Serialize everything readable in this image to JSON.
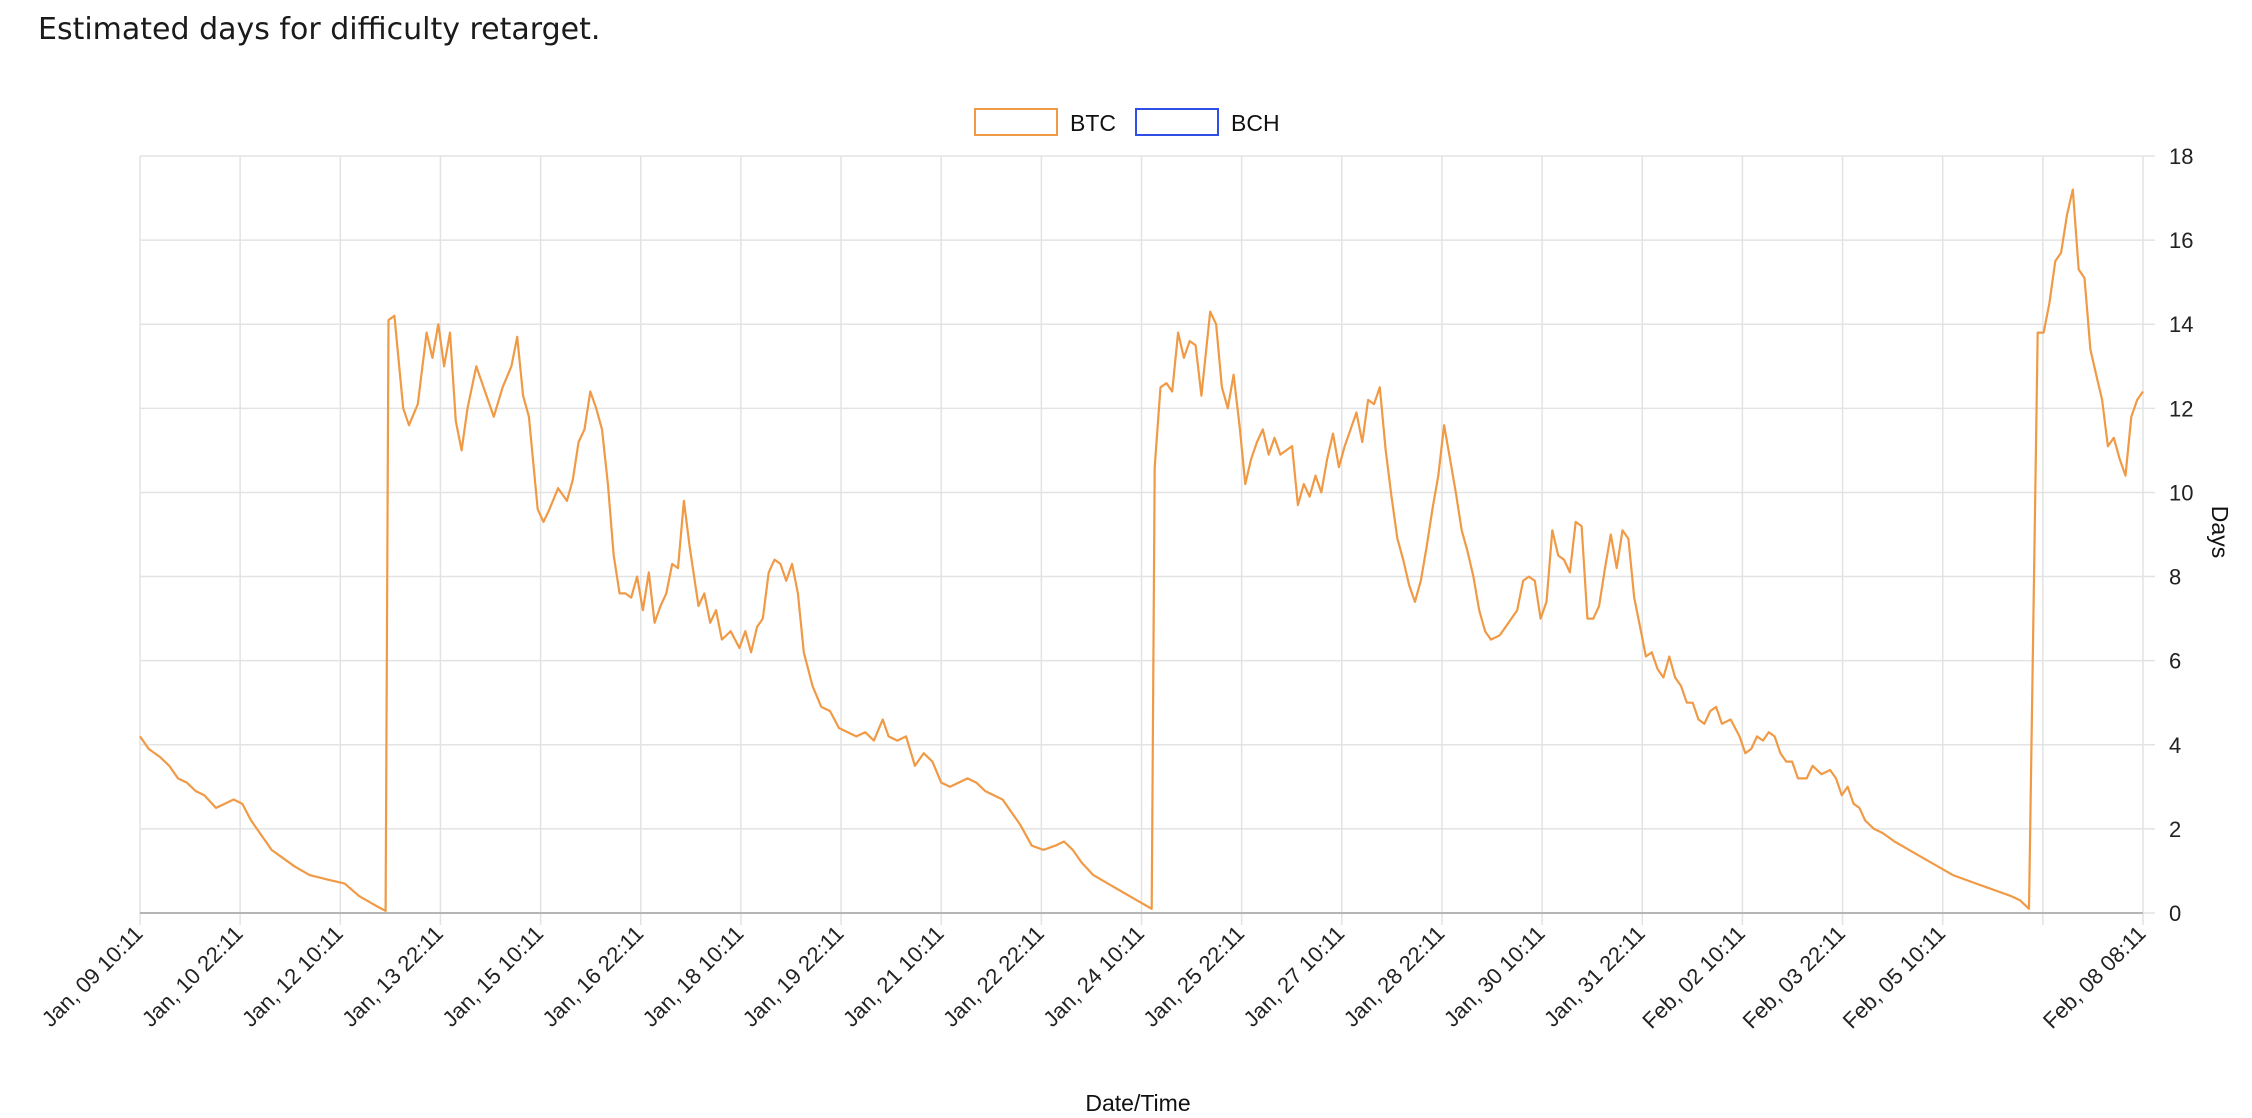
{
  "title": "Estimated days for difficulty retarget.",
  "colors": {
    "btc": "#f09a46",
    "bch": "#2e4fe6",
    "grid": "#e3e3e3",
    "axis": "#b5b5b5"
  },
  "chart_data": {
    "type": "line",
    "xlabel": "Date/Time",
    "ylabel": "Days",
    "ylim": [
      0,
      18
    ],
    "yticks": [
      0,
      2,
      4,
      6,
      8,
      10,
      12,
      14,
      16,
      18
    ],
    "xticks": [
      "Jan, 09 10:11",
      "Jan, 10 22:11",
      "Jan, 12 10:11",
      "Jan, 13 22:11",
      "Jan, 15 10:11",
      "Jan, 16 22:11",
      "Jan, 18 10:11",
      "Jan, 19 22:11",
      "Jan, 21 10:11",
      "Jan, 22 22:11",
      "Jan, 24 10:11",
      "Jan, 25 22:11",
      "Jan, 27 10:11",
      "Jan, 28 22:11",
      "Jan, 30 10:11",
      "Jan, 31 22:11",
      "Feb, 02 10:11",
      "Feb, 03 22:11",
      "Feb, 05 10:11",
      "",
      "Feb, 08 08:11"
    ],
    "grid": true,
    "legend": "top-center",
    "series": [
      {
        "name": "BTC",
        "points": [
          [
            0,
            4.2
          ],
          [
            0.15,
            3.9
          ],
          [
            0.35,
            3.7
          ],
          [
            0.5,
            3.5
          ],
          [
            0.65,
            3.2
          ],
          [
            0.8,
            3.1
          ],
          [
            0.95,
            2.9
          ],
          [
            1.1,
            2.8
          ],
          [
            1.3,
            2.5
          ],
          [
            1.45,
            2.6
          ],
          [
            1.6,
            2.7
          ],
          [
            1.75,
            2.6
          ],
          [
            1.9,
            2.2
          ],
          [
            2.05,
            1.9
          ],
          [
            2.25,
            1.5
          ],
          [
            2.45,
            1.3
          ],
          [
            2.65,
            1.1
          ],
          [
            2.9,
            0.9
          ],
          [
            3.2,
            0.8
          ],
          [
            3.5,
            0.7
          ],
          [
            3.75,
            0.4
          ],
          [
            4.0,
            0.2
          ],
          [
            4.2,
            0.05
          ],
          [
            4.25,
            14.1
          ],
          [
            4.35,
            14.2
          ],
          [
            4.5,
            12.0
          ],
          [
            4.6,
            11.6
          ],
          [
            4.75,
            12.1
          ],
          [
            4.9,
            13.8
          ],
          [
            5.0,
            13.2
          ],
          [
            5.1,
            14.0
          ],
          [
            5.2,
            13.0
          ],
          [
            5.3,
            13.8
          ],
          [
            5.4,
            11.7
          ],
          [
            5.5,
            11.0
          ],
          [
            5.6,
            12.0
          ],
          [
            5.75,
            13.0
          ],
          [
            5.9,
            12.4
          ],
          [
            6.05,
            11.8
          ],
          [
            6.2,
            12.5
          ],
          [
            6.35,
            13.0
          ],
          [
            6.45,
            13.7
          ],
          [
            6.55,
            12.3
          ],
          [
            6.65,
            11.8
          ],
          [
            6.8,
            9.6
          ],
          [
            6.9,
            9.3
          ],
          [
            7.0,
            9.6
          ],
          [
            7.15,
            10.1
          ],
          [
            7.3,
            9.8
          ],
          [
            7.4,
            10.3
          ],
          [
            7.5,
            11.2
          ],
          [
            7.6,
            11.5
          ],
          [
            7.7,
            12.4
          ],
          [
            7.8,
            12.0
          ],
          [
            7.9,
            11.5
          ],
          [
            8.0,
            10.2
          ],
          [
            8.1,
            8.5
          ],
          [
            8.2,
            7.6
          ],
          [
            8.3,
            7.6
          ],
          [
            8.4,
            7.5
          ],
          [
            8.5,
            8.0
          ],
          [
            8.6,
            7.2
          ],
          [
            8.7,
            8.1
          ],
          [
            8.8,
            6.9
          ],
          [
            8.9,
            7.3
          ],
          [
            9.0,
            7.6
          ],
          [
            9.1,
            8.3
          ],
          [
            9.2,
            8.2
          ],
          [
            9.3,
            9.8
          ],
          [
            9.4,
            8.7
          ],
          [
            9.55,
            7.3
          ],
          [
            9.65,
            7.6
          ],
          [
            9.75,
            6.9
          ],
          [
            9.85,
            7.2
          ],
          [
            9.95,
            6.5
          ],
          [
            10.1,
            6.7
          ],
          [
            10.25,
            6.3
          ],
          [
            10.35,
            6.7
          ],
          [
            10.45,
            6.2
          ],
          [
            10.55,
            6.8
          ],
          [
            10.65,
            7.0
          ],
          [
            10.75,
            8.1
          ],
          [
            10.85,
            8.4
          ],
          [
            10.95,
            8.3
          ],
          [
            11.05,
            7.9
          ],
          [
            11.15,
            8.3
          ],
          [
            11.25,
            7.6
          ],
          [
            11.35,
            6.2
          ],
          [
            11.5,
            5.4
          ],
          [
            11.65,
            4.9
          ],
          [
            11.8,
            4.8
          ],
          [
            11.95,
            4.4
          ],
          [
            12.1,
            4.3
          ],
          [
            12.25,
            4.2
          ],
          [
            12.4,
            4.3
          ],
          [
            12.55,
            4.1
          ],
          [
            12.7,
            4.6
          ],
          [
            12.8,
            4.2
          ],
          [
            12.95,
            4.1
          ],
          [
            13.1,
            4.2
          ],
          [
            13.25,
            3.5
          ],
          [
            13.4,
            3.8
          ],
          [
            13.55,
            3.6
          ],
          [
            13.7,
            3.1
          ],
          [
            13.85,
            3.0
          ],
          [
            14.0,
            3.1
          ],
          [
            14.15,
            3.2
          ],
          [
            14.3,
            3.1
          ],
          [
            14.45,
            2.9
          ],
          [
            14.6,
            2.8
          ],
          [
            14.75,
            2.7
          ],
          [
            14.9,
            2.4
          ],
          [
            15.05,
            2.1
          ],
          [
            15.25,
            1.6
          ],
          [
            15.45,
            1.5
          ],
          [
            15.65,
            1.6
          ],
          [
            15.8,
            1.7
          ],
          [
            15.95,
            1.5
          ],
          [
            16.1,
            1.2
          ],
          [
            16.3,
            0.9
          ],
          [
            16.55,
            0.7
          ],
          [
            16.8,
            0.5
          ],
          [
            17.05,
            0.3
          ],
          [
            17.3,
            0.1
          ],
          [
            17.35,
            10.6
          ],
          [
            17.45,
            12.5
          ],
          [
            17.55,
            12.6
          ],
          [
            17.65,
            12.4
          ],
          [
            17.75,
            13.8
          ],
          [
            17.85,
            13.2
          ],
          [
            17.95,
            13.6
          ],
          [
            18.05,
            13.5
          ],
          [
            18.15,
            12.3
          ],
          [
            18.3,
            14.3
          ],
          [
            18.4,
            14.0
          ],
          [
            18.5,
            12.5
          ],
          [
            18.6,
            12.0
          ],
          [
            18.7,
            12.8
          ],
          [
            18.8,
            11.6
          ],
          [
            18.9,
            10.2
          ],
          [
            19.0,
            10.8
          ],
          [
            19.1,
            11.2
          ],
          [
            19.2,
            11.5
          ],
          [
            19.3,
            10.9
          ],
          [
            19.4,
            11.3
          ],
          [
            19.5,
            10.9
          ],
          [
            19.6,
            11.0
          ],
          [
            19.7,
            11.1
          ],
          [
            19.8,
            9.7
          ],
          [
            19.9,
            10.2
          ],
          [
            20.0,
            9.9
          ],
          [
            20.1,
            10.4
          ],
          [
            20.2,
            10.0
          ],
          [
            20.3,
            10.8
          ],
          [
            20.4,
            11.4
          ],
          [
            20.5,
            10.6
          ],
          [
            20.6,
            11.1
          ],
          [
            20.7,
            11.5
          ],
          [
            20.8,
            11.9
          ],
          [
            20.9,
            11.2
          ],
          [
            21.0,
            12.2
          ],
          [
            21.1,
            12.1
          ],
          [
            21.2,
            12.5
          ],
          [
            21.3,
            11.0
          ],
          [
            21.4,
            9.9
          ],
          [
            21.5,
            8.9
          ],
          [
            21.6,
            8.4
          ],
          [
            21.7,
            7.8
          ],
          [
            21.8,
            7.4
          ],
          [
            21.9,
            7.9
          ],
          [
            22.0,
            8.7
          ],
          [
            22.1,
            9.6
          ],
          [
            22.2,
            10.4
          ],
          [
            22.3,
            11.6
          ],
          [
            22.4,
            10.8
          ],
          [
            22.5,
            10.0
          ],
          [
            22.6,
            9.1
          ],
          [
            22.7,
            8.6
          ],
          [
            22.8,
            8.0
          ],
          [
            22.9,
            7.2
          ],
          [
            23.0,
            6.7
          ],
          [
            23.1,
            6.5
          ],
          [
            23.25,
            6.6
          ],
          [
            23.4,
            6.9
          ],
          [
            23.55,
            7.2
          ],
          [
            23.65,
            7.9
          ],
          [
            23.75,
            8.0
          ],
          [
            23.85,
            7.9
          ],
          [
            23.95,
            7.0
          ],
          [
            24.05,
            7.4
          ],
          [
            24.15,
            9.1
          ],
          [
            24.25,
            8.5
          ],
          [
            24.35,
            8.4
          ],
          [
            24.45,
            8.1
          ],
          [
            24.55,
            9.3
          ],
          [
            24.65,
            9.2
          ],
          [
            24.75,
            7.0
          ],
          [
            24.85,
            7.0
          ],
          [
            24.95,
            7.3
          ],
          [
            25.05,
            8.2
          ],
          [
            25.15,
            9.0
          ],
          [
            25.25,
            8.2
          ],
          [
            25.35,
            9.1
          ],
          [
            25.45,
            8.9
          ],
          [
            25.55,
            7.5
          ],
          [
            25.65,
            6.8
          ],
          [
            25.75,
            6.1
          ],
          [
            25.85,
            6.2
          ],
          [
            25.95,
            5.8
          ],
          [
            26.05,
            5.6
          ],
          [
            26.15,
            6.1
          ],
          [
            26.25,
            5.6
          ],
          [
            26.35,
            5.4
          ],
          [
            26.45,
            5.0
          ],
          [
            26.55,
            5.0
          ],
          [
            26.65,
            4.6
          ],
          [
            26.75,
            4.5
          ],
          [
            26.85,
            4.8
          ],
          [
            26.95,
            4.9
          ],
          [
            27.05,
            4.5
          ],
          [
            27.2,
            4.6
          ],
          [
            27.35,
            4.2
          ],
          [
            27.45,
            3.8
          ],
          [
            27.55,
            3.9
          ],
          [
            27.65,
            4.2
          ],
          [
            27.75,
            4.1
          ],
          [
            27.85,
            4.3
          ],
          [
            27.95,
            4.2
          ],
          [
            28.05,
            3.8
          ],
          [
            28.15,
            3.6
          ],
          [
            28.25,
            3.6
          ],
          [
            28.35,
            3.2
          ],
          [
            28.5,
            3.2
          ],
          [
            28.6,
            3.5
          ],
          [
            28.75,
            3.3
          ],
          [
            28.9,
            3.4
          ],
          [
            29.0,
            3.2
          ],
          [
            29.1,
            2.8
          ],
          [
            29.2,
            3.0
          ],
          [
            29.3,
            2.6
          ],
          [
            29.4,
            2.5
          ],
          [
            29.5,
            2.2
          ],
          [
            29.65,
            2.0
          ],
          [
            29.8,
            1.9
          ],
          [
            30.0,
            1.7
          ],
          [
            30.25,
            1.5
          ],
          [
            30.5,
            1.3
          ],
          [
            30.75,
            1.1
          ],
          [
            31.0,
            0.9
          ],
          [
            31.2,
            0.8
          ],
          [
            31.4,
            0.7
          ],
          [
            31.6,
            0.6
          ],
          [
            31.8,
            0.5
          ],
          [
            32.0,
            0.4
          ],
          [
            32.15,
            0.3
          ],
          [
            32.3,
            0.1
          ],
          [
            32.45,
            13.8
          ],
          [
            32.55,
            13.8
          ],
          [
            32.65,
            14.5
          ],
          [
            32.75,
            15.5
          ],
          [
            32.85,
            15.7
          ],
          [
            32.95,
            16.6
          ],
          [
            33.05,
            17.2
          ],
          [
            33.15,
            15.3
          ],
          [
            33.25,
            15.1
          ],
          [
            33.35,
            13.4
          ],
          [
            33.45,
            12.8
          ],
          [
            33.55,
            12.2
          ],
          [
            33.65,
            11.1
          ],
          [
            33.75,
            11.3
          ],
          [
            33.85,
            10.8
          ],
          [
            33.95,
            10.4
          ],
          [
            34.05,
            11.8
          ],
          [
            34.15,
            12.2
          ],
          [
            34.25,
            12.4
          ]
        ]
      },
      {
        "name": "BCH",
        "points": []
      }
    ]
  }
}
